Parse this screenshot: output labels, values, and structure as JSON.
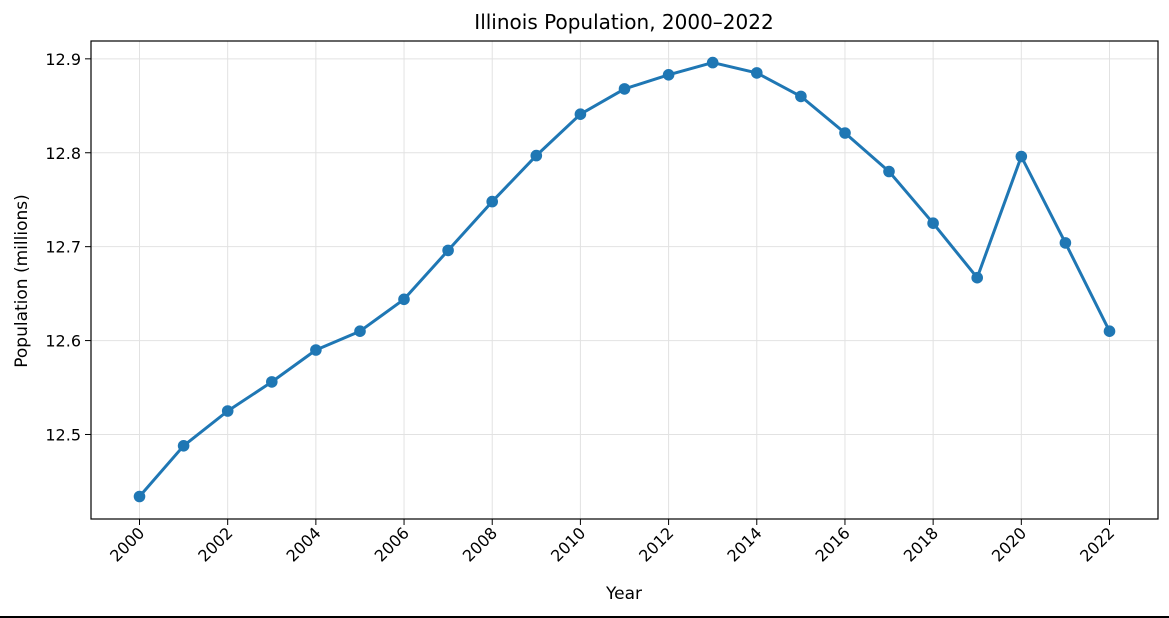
{
  "chart_data": {
    "type": "line",
    "title": "Illinois Population, 2000–2022",
    "xlabel": "Year",
    "ylabel": "Population (millions)",
    "x": [
      2000,
      2001,
      2002,
      2003,
      2004,
      2005,
      2006,
      2007,
      2008,
      2009,
      2010,
      2011,
      2012,
      2013,
      2014,
      2015,
      2016,
      2017,
      2018,
      2019,
      2020,
      2021,
      2022
    ],
    "series": [
      {
        "name": "Illinois population",
        "color": "#1f77b4",
        "values": [
          12.434,
          12.488,
          12.525,
          12.556,
          12.59,
          12.61,
          12.644,
          12.696,
          12.748,
          12.797,
          12.841,
          12.868,
          12.883,
          12.896,
          12.885,
          12.86,
          12.821,
          12.78,
          12.725,
          12.667,
          12.796,
          12.704,
          12.61
        ]
      }
    ],
    "xticks": [
      "2000",
      "2002",
      "2004",
      "2006",
      "2008",
      "2010",
      "2012",
      "2014",
      "2016",
      "2018",
      "2020",
      "2022"
    ],
    "yticks": [
      "12.5",
      "12.6",
      "12.7",
      "12.8",
      "12.9"
    ],
    "xlim": [
      1998.9,
      2023.1
    ],
    "ylim": [
      12.41,
      12.919
    ],
    "grid": true
  }
}
